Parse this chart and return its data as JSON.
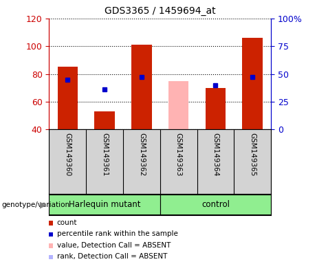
{
  "title": "GDS3365 / 1459694_at",
  "samples": [
    "GSM149360",
    "GSM149361",
    "GSM149362",
    "GSM149363",
    "GSM149364",
    "GSM149365"
  ],
  "count_values": [
    85,
    53,
    101,
    null,
    70,
    106
  ],
  "absent_value": [
    null,
    null,
    null,
    75,
    null,
    null
  ],
  "blue_dot_values": [
    76,
    69,
    78,
    null,
    72,
    78
  ],
  "ylim_left": [
    40,
    120
  ],
  "ylim_right": [
    0,
    100
  ],
  "yticks_left": [
    40,
    60,
    80,
    100,
    120
  ],
  "yticks_right": [
    0,
    25,
    50,
    75,
    100
  ],
  "yticklabels_right": [
    "0",
    "25",
    "50",
    "75",
    "100%"
  ],
  "left_axis_color": "#cc0000",
  "right_axis_color": "#0000cc",
  "bar_color_red": "#cc2200",
  "bar_color_pink": "#ffb3b3",
  "bar_color_lightblue": "#b3b3ff",
  "dot_color_blue": "#0000cc",
  "legend_items": [
    {
      "color": "#cc2200",
      "label": "count"
    },
    {
      "color": "#0000cc",
      "label": "percentile rank within the sample"
    },
    {
      "color": "#ffb3b3",
      "label": "value, Detection Call = ABSENT"
    },
    {
      "color": "#b3b3ff",
      "label": "rank, Detection Call = ABSENT"
    }
  ],
  "bar_bottom": 40,
  "group1_label": "Harlequin mutant",
  "group2_label": "control",
  "group_color": "#90ee90",
  "label_area_color": "#d3d3d3",
  "genotype_label": "genotype/variation"
}
